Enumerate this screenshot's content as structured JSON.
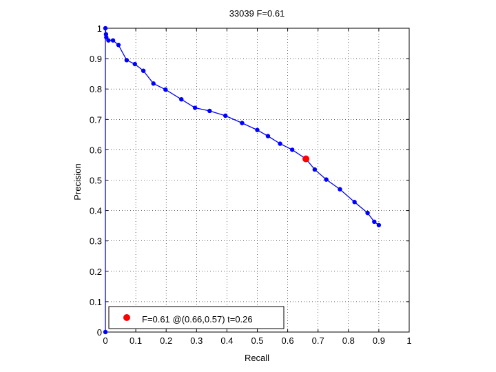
{
  "chart_data": {
    "type": "line",
    "title": "33039 F=0.61",
    "xlabel": "Recall",
    "ylabel": "Precision",
    "xlim": [
      0,
      1
    ],
    "ylim": [
      0,
      1
    ],
    "xticks": [
      0,
      0.1,
      0.2,
      0.3,
      0.4,
      0.5,
      0.6,
      0.7,
      0.8,
      0.9,
      1
    ],
    "yticks": [
      0,
      0.1,
      0.2,
      0.3,
      0.4,
      0.5,
      0.6,
      0.7,
      0.8,
      0.9,
      1
    ],
    "xtick_labels": [
      "0",
      "0.1",
      "0.2",
      "0.3",
      "0.4",
      "0.5",
      "0.6",
      "0.7",
      "0.8",
      "0.9",
      "1"
    ],
    "ytick_labels": [
      "0",
      "0.1",
      "0.2",
      "0.3",
      "0.4",
      "0.5",
      "0.6",
      "0.7",
      "0.8",
      "0.9",
      "1"
    ],
    "grid": true,
    "legend_position": "bottom-left",
    "series": [
      {
        "color": "#0000ff",
        "x": [
          0,
          0,
          0.002,
          0.003,
          0.01,
          0.025,
          0.043,
          0.07,
          0.097,
          0.125,
          0.158,
          0.198,
          0.25,
          0.295,
          0.343,
          0.395,
          0.45,
          0.5,
          0.535,
          0.575,
          0.615,
          0.66,
          0.689,
          0.727,
          0.772,
          0.82,
          0.863,
          0.885,
          0.9
        ],
        "y": [
          0,
          1,
          0.98,
          0.97,
          0.96,
          0.96,
          0.945,
          0.895,
          0.882,
          0.86,
          0.818,
          0.798,
          0.766,
          0.738,
          0.728,
          0.712,
          0.688,
          0.665,
          0.645,
          0.62,
          0.6,
          0.57,
          0.535,
          0.502,
          0.47,
          0.428,
          0.392,
          0.363,
          0.352
        ]
      }
    ],
    "best_point": {
      "x": 0.66,
      "y": 0.57,
      "color": "#ff0000"
    },
    "legend_text": "F=0.61 @(0.66,0.57) t=0.26"
  }
}
